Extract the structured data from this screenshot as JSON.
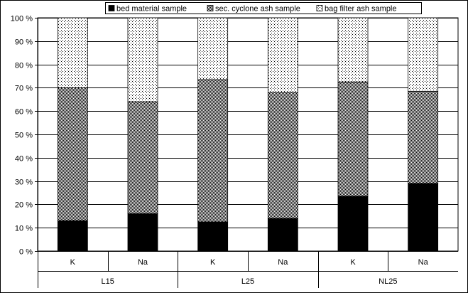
{
  "chart_data": {
    "type": "bar",
    "stacked": true,
    "title": "",
    "xlabel": "",
    "ylabel": "",
    "ylim": [
      0,
      100
    ],
    "y_ticks": [
      "0 %",
      "10 %",
      "20 %",
      "30 %",
      "40 %",
      "50 %",
      "60 %",
      "70 %",
      "80 %",
      "90 %",
      "100 %"
    ],
    "grid": true,
    "legend_position": "top-center",
    "groups": [
      "L15",
      "L25",
      "NL25"
    ],
    "categories": [
      "K",
      "Na",
      "K",
      "Na",
      "K",
      "Na"
    ],
    "series": [
      {
        "name": "bed material sample",
        "pattern": "solid",
        "color": "#000000",
        "values": [
          13,
          16,
          12.5,
          14,
          23.5,
          29
        ]
      },
      {
        "name": "sec. cyclone ash sample",
        "pattern": "crosshatch",
        "color": "#555555",
        "values": [
          57,
          48,
          61,
          54,
          49,
          39.5
        ]
      },
      {
        "name": "bag filter ash sample",
        "pattern": "dotted",
        "color": "#ffffff",
        "values": [
          30,
          36,
          26.5,
          32,
          27.5,
          31.5
        ]
      }
    ]
  }
}
